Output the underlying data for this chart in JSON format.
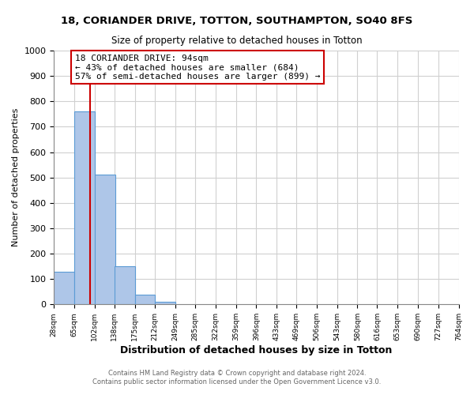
{
  "title": "18, CORIANDER DRIVE, TOTTON, SOUTHAMPTON, SO40 8FS",
  "subtitle": "Size of property relative to detached houses in Totton",
  "xlabel": "Distribution of detached houses by size in Totton",
  "ylabel": "Number of detached properties",
  "bin_edges": [
    28,
    65,
    102,
    138,
    175,
    212,
    249,
    285,
    322,
    359,
    396,
    433,
    469,
    506,
    543,
    580,
    616,
    653,
    690,
    727,
    764
  ],
  "bar_heights": [
    128,
    760,
    510,
    152,
    38,
    10,
    0,
    0,
    0,
    0,
    0,
    0,
    0,
    0,
    0,
    0,
    0,
    0,
    0,
    0
  ],
  "bar_color": "#aec6e8",
  "bar_edge_color": "#5b9bd5",
  "property_line_x": 94,
  "property_line_color": "#cc0000",
  "ylim": [
    0,
    1000
  ],
  "yticks": [
    0,
    100,
    200,
    300,
    400,
    500,
    600,
    700,
    800,
    900,
    1000
  ],
  "annotation_title": "18 CORIANDER DRIVE: 94sqm",
  "annotation_line1": "← 43% of detached houses are smaller (684)",
  "annotation_line2": "57% of semi-detached houses are larger (899) →",
  "annotation_box_color": "#ffffff",
  "annotation_box_edge_color": "#cc0000",
  "footer_line1": "Contains HM Land Registry data © Crown copyright and database right 2024.",
  "footer_line2": "Contains public sector information licensed under the Open Government Licence v3.0.",
  "background_color": "#ffffff",
  "grid_color": "#d0d0d0",
  "tick_labels": [
    "28sqm",
    "65sqm",
    "102sqm",
    "138sqm",
    "175sqm",
    "212sqm",
    "249sqm",
    "285sqm",
    "322sqm",
    "359sqm",
    "396sqm",
    "433sqm",
    "469sqm",
    "506sqm",
    "543sqm",
    "580sqm",
    "616sqm",
    "653sqm",
    "690sqm",
    "727sqm",
    "764sqm"
  ]
}
